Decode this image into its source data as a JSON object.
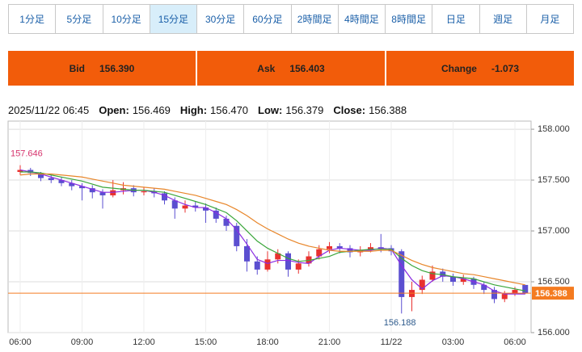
{
  "tabs": [
    "1分足",
    "5分足",
    "10分足",
    "15分足",
    "30分足",
    "60分足",
    "2時間足",
    "4時間足",
    "8時間足",
    "日足",
    "週足",
    "月足"
  ],
  "active_tab": 3,
  "quote": [
    {
      "label": "Bid",
      "value": "156.390"
    },
    {
      "label": "Ask",
      "value": "156.403"
    },
    {
      "label": "Change",
      "value": "-1.073"
    }
  ],
  "info": {
    "date": "2025/11/22 06:45",
    "items": [
      {
        "label": "Open:",
        "value": "156.469"
      },
      {
        "label": "High:",
        "value": "156.470"
      },
      {
        "label": "Low:",
        "value": "156.379"
      },
      {
        "label": "Close:",
        "value": "156.388"
      }
    ]
  },
  "chart_data": {
    "type": "candlestick",
    "categories": [
      "06:00",
      null,
      null,
      null,
      null,
      null,
      "09:00",
      null,
      null,
      null,
      null,
      null,
      "12:00",
      null,
      null,
      null,
      null,
      null,
      "15:00",
      null,
      null,
      null,
      null,
      null,
      "18:00",
      null,
      null,
      null,
      null,
      null,
      "21:00",
      null,
      null,
      null,
      null,
      null,
      "11/22",
      null,
      null,
      null,
      null,
      null,
      "03:00",
      null,
      null,
      null,
      null,
      null,
      "06:00",
      null
    ],
    "ohlc": [
      [
        157.58,
        157.646,
        157.55,
        157.6
      ],
      [
        157.6,
        157.62,
        157.54,
        157.57
      ],
      [
        157.57,
        157.58,
        157.49,
        157.52
      ],
      [
        157.52,
        157.55,
        157.47,
        157.5
      ],
      [
        157.5,
        157.53,
        157.44,
        157.47
      ],
      [
        157.47,
        157.5,
        157.4,
        157.44
      ],
      [
        157.44,
        157.47,
        157.3,
        157.42
      ],
      [
        157.42,
        157.45,
        157.32,
        157.38
      ],
      [
        157.38,
        157.41,
        157.22,
        157.35
      ],
      [
        157.35,
        157.5,
        157.33,
        157.4
      ],
      [
        157.4,
        157.48,
        157.36,
        157.42
      ],
      [
        157.42,
        157.45,
        157.34,
        157.38
      ],
      [
        157.38,
        157.43,
        157.35,
        157.39
      ],
      [
        157.39,
        157.42,
        157.33,
        157.37
      ],
      [
        157.37,
        157.39,
        157.26,
        157.3
      ],
      [
        157.3,
        157.33,
        157.12,
        157.22
      ],
      [
        157.22,
        157.3,
        157.18,
        157.25
      ],
      [
        157.25,
        157.29,
        157.19,
        157.23
      ],
      [
        157.23,
        157.27,
        157.08,
        157.2
      ],
      [
        157.2,
        157.23,
        157.08,
        157.12
      ],
      [
        157.12,
        157.15,
        157.0,
        157.05
      ],
      [
        157.05,
        157.08,
        156.8,
        156.85
      ],
      [
        156.85,
        156.92,
        156.6,
        156.7
      ],
      [
        156.7,
        156.75,
        156.57,
        156.62
      ],
      [
        156.62,
        156.8,
        156.6,
        156.72
      ],
      [
        156.72,
        156.82,
        156.68,
        156.78
      ],
      [
        156.78,
        156.8,
        156.55,
        156.62
      ],
      [
        156.62,
        156.72,
        156.58,
        156.68
      ],
      [
        156.68,
        156.8,
        156.65,
        156.75
      ],
      [
        156.75,
        156.86,
        156.72,
        156.82
      ],
      [
        156.82,
        156.89,
        156.78,
        156.85
      ],
      [
        156.85,
        156.88,
        156.78,
        156.83
      ],
      [
        156.83,
        156.86,
        156.74,
        156.79
      ],
      [
        156.79,
        156.85,
        156.75,
        156.81
      ],
      [
        156.81,
        156.88,
        156.79,
        156.84
      ],
      [
        156.84,
        156.97,
        156.79,
        156.83
      ],
      [
        156.83,
        156.86,
        156.76,
        156.8
      ],
      [
        156.8,
        156.82,
        156.188,
        156.35
      ],
      [
        156.35,
        156.5,
        156.21,
        156.42
      ],
      [
        156.42,
        156.56,
        156.38,
        156.52
      ],
      [
        156.52,
        156.66,
        156.5,
        156.6
      ],
      [
        156.6,
        156.63,
        156.5,
        156.55
      ],
      [
        156.55,
        156.58,
        156.46,
        156.5
      ],
      [
        156.5,
        156.57,
        156.47,
        156.53
      ],
      [
        156.53,
        156.55,
        156.43,
        156.47
      ],
      [
        156.47,
        156.5,
        156.38,
        156.42
      ],
      [
        156.42,
        156.45,
        156.29,
        156.33
      ],
      [
        156.33,
        156.41,
        156.3,
        156.38
      ],
      [
        156.38,
        156.45,
        156.36,
        156.42
      ],
      [
        156.469,
        156.47,
        156.379,
        156.388
      ]
    ],
    "up_color": "#e8312f",
    "down_color": "#5b4fd0",
    "series": [
      {
        "color": "#8a2be2",
        "values": [
          157.6,
          157.58,
          157.56,
          157.53,
          157.5,
          157.47,
          157.44,
          157.41,
          157.38,
          157.38,
          157.39,
          157.4,
          157.4,
          157.38,
          157.35,
          157.3,
          157.26,
          157.23,
          157.23,
          157.18,
          157.12,
          157.01,
          156.87,
          156.72,
          156.68,
          156.71,
          156.71,
          156.69,
          156.68,
          156.75,
          156.81,
          156.83,
          156.82,
          156.81,
          156.81,
          156.83,
          156.82,
          156.66,
          156.52,
          156.43,
          156.51,
          156.56,
          156.55,
          156.53,
          156.5,
          156.47,
          156.41,
          156.38,
          156.38,
          156.38
        ]
      },
      {
        "color": "#3aa63a",
        "values": [
          157.58,
          157.58,
          157.57,
          157.55,
          157.53,
          157.51,
          157.49,
          157.46,
          157.43,
          157.42,
          157.41,
          157.4,
          157.4,
          157.39,
          157.38,
          157.35,
          157.32,
          157.29,
          157.26,
          157.22,
          157.18,
          157.1,
          157.0,
          156.9,
          156.83,
          156.78,
          156.73,
          156.7,
          156.71,
          156.73,
          156.75,
          156.79,
          156.8,
          156.81,
          156.82,
          156.82,
          156.82,
          156.73,
          156.66,
          156.61,
          156.58,
          156.57,
          156.55,
          156.54,
          156.53,
          156.5,
          156.47,
          156.45,
          156.43,
          156.41
        ]
      },
      {
        "color": "#e8862a",
        "values": [
          157.55,
          157.56,
          157.56,
          157.56,
          157.55,
          157.54,
          157.53,
          157.51,
          157.49,
          157.47,
          157.45,
          157.44,
          157.43,
          157.42,
          157.41,
          157.39,
          157.37,
          157.35,
          157.32,
          157.29,
          157.26,
          157.21,
          157.15,
          157.08,
          157.02,
          156.97,
          156.92,
          156.88,
          156.85,
          156.83,
          156.81,
          156.8,
          156.8,
          156.8,
          156.8,
          156.81,
          156.81,
          156.76,
          156.71,
          156.67,
          156.64,
          156.62,
          156.6,
          156.58,
          156.57,
          156.55,
          156.53,
          156.51,
          156.49,
          156.47
        ]
      }
    ],
    "ylim": [
      156.0,
      158.08
    ],
    "yticks": [
      {
        "value": 156,
        "label": "156.000"
      },
      {
        "value": 156.5,
        "label": "156.500"
      },
      {
        "value": 157,
        "label": "157.000"
      },
      {
        "value": 157.5,
        "label": "157.500"
      },
      {
        "value": 158,
        "label": "158.000"
      }
    ],
    "grid": true,
    "current": {
      "value": 156.388,
      "label": "156.388",
      "color": "#f47b20"
    },
    "annotations": [
      {
        "index": 0,
        "value": 157.646,
        "label": "157.646",
        "color": "#d6336c"
      },
      {
        "index": 37,
        "value": 156.188,
        "label": "156.188",
        "color": "#2d5a8c"
      }
    ]
  }
}
